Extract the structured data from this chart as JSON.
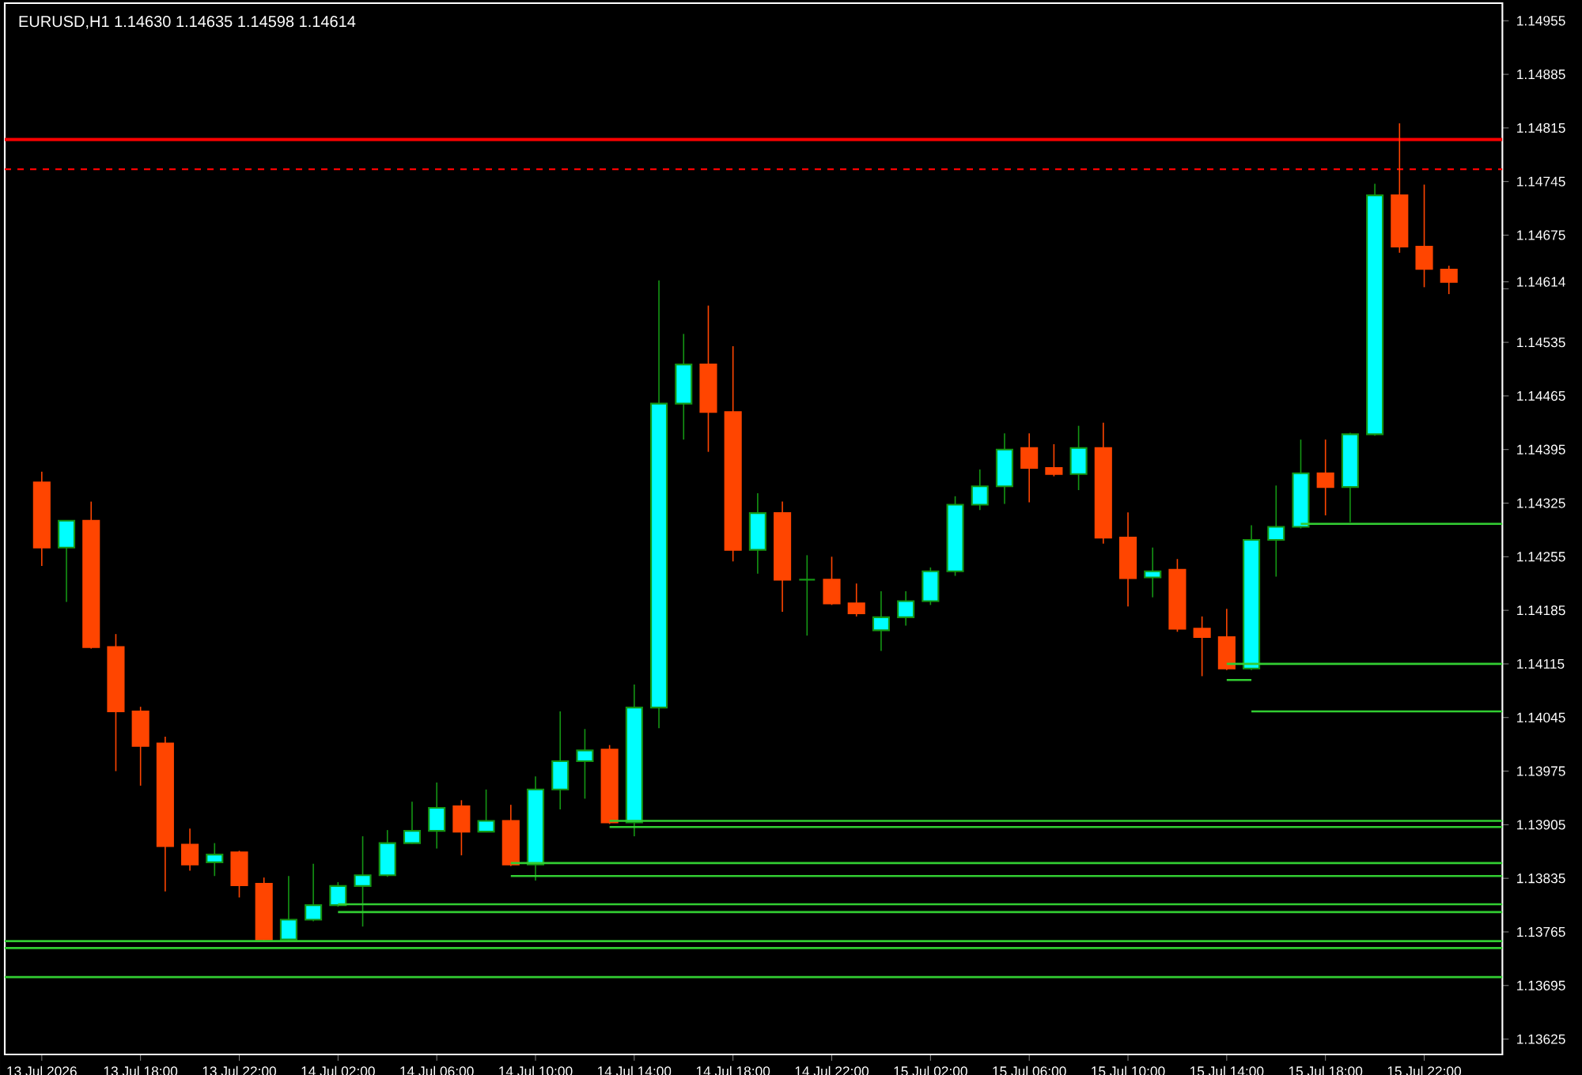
{
  "chart_data": {
    "type": "candlestick",
    "title": "EURUSD,H1  1.14630 1.14635 1.14598 1.14614",
    "x": [
      "2026-07-13T14:00",
      "2026-07-13T15:00",
      "2026-07-13T16:00",
      "2026-07-13T17:00",
      "2026-07-13T18:00",
      "2026-07-13T19:00",
      "2026-07-13T20:00",
      "2026-07-13T21:00",
      "2026-07-13T22:00",
      "2026-07-13T23:00",
      "2026-07-14T00:00",
      "2026-07-14T01:00",
      "2026-07-14T02:00",
      "2026-07-14T03:00",
      "2026-07-14T04:00",
      "2026-07-14T05:00",
      "2026-07-14T06:00",
      "2026-07-14T07:00",
      "2026-07-14T08:00",
      "2026-07-14T09:00",
      "2026-07-14T10:00",
      "2026-07-14T11:00",
      "2026-07-14T12:00",
      "2026-07-14T13:00",
      "2026-07-14T14:00",
      "2026-07-14T15:00",
      "2026-07-14T16:00",
      "2026-07-14T17:00",
      "2026-07-14T18:00",
      "2026-07-14T19:00",
      "2026-07-14T20:00",
      "2026-07-14T21:00",
      "2026-07-14T22:00",
      "2026-07-14T23:00",
      "2026-07-15T00:00",
      "2026-07-15T01:00",
      "2026-07-15T02:00",
      "2026-07-15T03:00",
      "2026-07-15T04:00",
      "2026-07-15T05:00",
      "2026-07-15T06:00",
      "2026-07-15T07:00",
      "2026-07-15T08:00",
      "2026-07-15T09:00",
      "2026-07-15T10:00",
      "2026-07-15T11:00",
      "2026-07-15T12:00",
      "2026-07-15T13:00",
      "2026-07-15T14:00",
      "2026-07-15T15:00",
      "2026-07-15T16:00",
      "2026-07-15T17:00",
      "2026-07-15T18:00",
      "2026-07-15T19:00",
      "2026-07-15T20:00",
      "2026-07-15T21:00",
      "2026-07-15T22:00",
      "2026-07-15T23:00"
    ],
    "ohlc": [
      [
        1.14352,
        1.14366,
        1.14243,
        1.14267
      ],
      [
        1.14267,
        1.14302,
        1.14196,
        1.14302
      ],
      [
        1.14302,
        1.14327,
        1.14135,
        1.14137
      ],
      [
        1.14137,
        1.14154,
        1.13975,
        1.14053
      ],
      [
        1.14053,
        1.14059,
        1.13956,
        1.14008
      ],
      [
        1.14011,
        1.1402,
        1.13818,
        1.13877
      ],
      [
        1.13879,
        1.139,
        1.13845,
        1.13853
      ],
      [
        1.13856,
        1.13881,
        1.13838,
        1.13866
      ],
      [
        1.13869,
        1.13871,
        1.1381,
        1.13826
      ],
      [
        1.13828,
        1.13836,
        1.13753,
        1.13755
      ],
      [
        1.13755,
        1.13838,
        1.13753,
        1.13781
      ],
      [
        1.13781,
        1.13854,
        1.13779,
        1.138
      ],
      [
        1.138,
        1.1383,
        1.13798,
        1.13825
      ],
      [
        1.13825,
        1.1389,
        1.13772,
        1.13839
      ],
      [
        1.13839,
        1.13898,
        1.13837,
        1.13881
      ],
      [
        1.13881,
        1.13935,
        1.1388,
        1.13897
      ],
      [
        1.13897,
        1.1396,
        1.13874,
        1.13927
      ],
      [
        1.13929,
        1.13937,
        1.13865,
        1.13896
      ],
      [
        1.13896,
        1.13951,
        1.13895,
        1.1391
      ],
      [
        1.1391,
        1.13931,
        1.13851,
        1.13853
      ],
      [
        1.13853,
        1.13968,
        1.13832,
        1.13951
      ],
      [
        1.13951,
        1.14053,
        1.13925,
        1.13988
      ],
      [
        1.13988,
        1.1403,
        1.13939,
        1.14002
      ],
      [
        1.14003,
        1.14009,
        1.13906,
        1.13908
      ],
      [
        1.13908,
        1.14088,
        1.1389,
        1.14058
      ],
      [
        1.14058,
        1.14616,
        1.14031,
        1.14455
      ],
      [
        1.14455,
        1.14546,
        1.14408,
        1.14506
      ],
      [
        1.14506,
        1.14583,
        1.14392,
        1.14444
      ],
      [
        1.14444,
        1.1453,
        1.14249,
        1.14264
      ],
      [
        1.14264,
        1.14338,
        1.14233,
        1.14312
      ],
      [
        1.14312,
        1.14327,
        1.14183,
        1.14225
      ],
      [
        1.14225,
        1.14257,
        1.14152,
        1.14225
      ],
      [
        1.14225,
        1.14255,
        1.14192,
        1.14194
      ],
      [
        1.14194,
        1.1422,
        1.14177,
        1.14181
      ],
      [
        1.14159,
        1.1421,
        1.14132,
        1.14176
      ],
      [
        1.14176,
        1.1421,
        1.14165,
        1.14197
      ],
      [
        1.14197,
        1.14241,
        1.14192,
        1.14236
      ],
      [
        1.14236,
        1.14334,
        1.1423,
        1.14323
      ],
      [
        1.14323,
        1.14369,
        1.14316,
        1.14347
      ],
      [
        1.14347,
        1.14416,
        1.14324,
        1.14395
      ],
      [
        1.14397,
        1.14416,
        1.14326,
        1.14371
      ],
      [
        1.14371,
        1.14402,
        1.1436,
        1.14363
      ],
      [
        1.14363,
        1.14426,
        1.14342,
        1.14397
      ],
      [
        1.14397,
        1.1443,
        1.14272,
        1.1428
      ],
      [
        1.1428,
        1.14313,
        1.1419,
        1.14227
      ],
      [
        1.14228,
        1.14267,
        1.14202,
        1.14236
      ],
      [
        1.14238,
        1.14252,
        1.14157,
        1.14161
      ],
      [
        1.14161,
        1.14177,
        1.14099,
        1.1415
      ],
      [
        1.1415,
        1.14187,
        1.14107,
        1.14109
      ],
      [
        1.14109,
        1.14296,
        1.14107,
        1.14277
      ],
      [
        1.14277,
        1.14348,
        1.14229,
        1.14294
      ],
      [
        1.14294,
        1.14408,
        1.14292,
        1.14364
      ],
      [
        1.14364,
        1.14408,
        1.14309,
        1.14346
      ],
      [
        1.14346,
        1.14417,
        1.143,
        1.14415
      ],
      [
        1.14415,
        1.14742,
        1.14413,
        1.14727
      ],
      [
        1.14727,
        1.14821,
        1.14652,
        1.1466
      ],
      [
        1.1466,
        1.14741,
        1.14607,
        1.14631
      ],
      [
        1.1463,
        1.14635,
        1.14598,
        1.14614
      ]
    ],
    "colors": [
      "#ff4500",
      "#00ffff",
      "#ff4500",
      "#ff4500",
      "#ff4500",
      "#ff4500",
      "#ff4500",
      "#00ffff",
      "#ff4500",
      "#ff4500",
      "#00ffff",
      "#00ffff",
      "#00ffff",
      "#00ffff",
      "#00ffff",
      "#00ffff",
      "#00ffff",
      "#ff4500",
      "#00ffff",
      "#ff4500",
      "#00ffff",
      "#00ffff",
      "#00ffff",
      "#ff4500",
      "#00ffff",
      "#00ffff",
      "#00ffff",
      "#ff4500",
      "#ff4500",
      "#00ffff",
      "#ff4500",
      "#149614",
      "#ff4500",
      "#ff4500",
      "#00ffff",
      "#00ffff",
      "#00ffff",
      "#00ffff",
      "#00ffff",
      "#00ffff",
      "#ff4500",
      "#ff4500",
      "#00ffff",
      "#ff4500",
      "#ff4500",
      "#00ffff",
      "#ff4500",
      "#ff4500",
      "#ff4500",
      "#00ffff",
      "#00ffff",
      "#00ffff",
      "#ff4500",
      "#00ffff",
      "#00ffff",
      "#ff4500",
      "#ff4500",
      "#ff4500"
    ],
    "series": [
      {
        "type": "line",
        "color": "#32cd32",
        "x": [
          "2026-07-13T12:30",
          "2026-07-16T01:10"
        ],
        "values": [
          1.13753,
          1.13753
        ]
      },
      {
        "type": "line",
        "color": "#32cd32",
        "x": [
          "2026-07-13T12:30",
          "2026-07-16T01:10"
        ],
        "values": [
          1.13744,
          1.13744
        ]
      },
      {
        "type": "line",
        "color": "#32cd32",
        "x": [
          "2026-07-13T12:30",
          "2026-07-16T01:10"
        ],
        "values": [
          1.13706,
          1.13706
        ]
      },
      {
        "type": "line",
        "color": "#32cd32",
        "x": [
          "2026-07-14T02:00",
          "2026-07-16T01:10"
        ],
        "values": [
          1.13801,
          1.13801
        ]
      },
      {
        "type": "line",
        "color": "#32cd32",
        "x": [
          "2026-07-14T02:00",
          "2026-07-16T01:10"
        ],
        "values": [
          1.13791,
          1.13791
        ]
      },
      {
        "type": "line",
        "color": "#32cd32",
        "x": [
          "2026-07-14T09:00",
          "2026-07-16T01:10"
        ],
        "values": [
          1.13855,
          1.13855
        ]
      },
      {
        "type": "line",
        "color": "#32cd32",
        "x": [
          "2026-07-14T09:00",
          "2026-07-16T01:10"
        ],
        "values": [
          1.13838,
          1.13838
        ]
      },
      {
        "type": "line",
        "color": "#32cd32",
        "x": [
          "2026-07-14T13:00",
          "2026-07-16T01:10"
        ],
        "values": [
          1.1391,
          1.1391
        ]
      },
      {
        "type": "line",
        "color": "#32cd32",
        "x": [
          "2026-07-14T13:00",
          "2026-07-16T01:10"
        ],
        "values": [
          1.13902,
          1.13902
        ]
      },
      {
        "type": "line",
        "color": "#32cd32",
        "x": [
          "2026-07-15T14:00",
          "2026-07-16T01:10"
        ],
        "values": [
          1.14115,
          1.14115
        ]
      },
      {
        "type": "line",
        "color": "#32cd32",
        "x": [
          "2026-07-15T15:00",
          "2026-07-16T01:10"
        ],
        "values": [
          1.14053,
          1.14053
        ]
      },
      {
        "type": "line",
        "color": "#32cd32",
        "x": [
          "2026-07-15T14:00",
          "2026-07-15T15:00"
        ],
        "values": [
          1.14094,
          1.14094
        ]
      },
      {
        "type": "line",
        "color": "#32cd32",
        "x": [
          "2026-07-15T17:00",
          "2026-07-16T01:10"
        ],
        "values": [
          1.14298,
          1.14298
        ]
      }
    ],
    "ref_lines": [
      {
        "axis": "y",
        "value": 1.148,
        "color": "#ff0000",
        "line_style": "solid"
      },
      {
        "axis": "y",
        "value": 1.14761,
        "color": "#ff0000",
        "line_style": "dashed"
      }
    ],
    "xlim": [
      "2026-07-13T12:30",
      "2026-07-16T01:10"
    ],
    "xticks": [
      {
        "value": "2026-07-13T14:00",
        "label": "13 Jul 2026"
      },
      {
        "value": "2026-07-13T18:00",
        "label": "13 Jul 18:00"
      },
      {
        "value": "2026-07-13T22:00",
        "label": "13 Jul 22:00"
      },
      {
        "value": "2026-07-14T02:00",
        "label": "14 Jul 02:00"
      },
      {
        "value": "2026-07-14T06:00",
        "label": "14 Jul 06:00"
      },
      {
        "value": "2026-07-14T10:00",
        "label": "14 Jul 10:00"
      },
      {
        "value": "2026-07-14T14:00",
        "label": "14 Jul 14:00"
      },
      {
        "value": "2026-07-14T18:00",
        "label": "14 Jul 18:00"
      },
      {
        "value": "2026-07-14T22:00",
        "label": "14 Jul 22:00"
      },
      {
        "value": "2026-07-15T02:00",
        "label": "15 Jul 02:00"
      },
      {
        "value": "2026-07-15T06:00",
        "label": "15 Jul 06:00"
      },
      {
        "value": "2026-07-15T10:00",
        "label": "15 Jul 10:00"
      },
      {
        "value": "2026-07-15T14:00",
        "label": "15 Jul 14:00"
      },
      {
        "value": "2026-07-15T18:00",
        "label": "15 Jul 18:00"
      },
      {
        "value": "2026-07-15T22:00",
        "label": "15 Jul 22:00"
      }
    ],
    "ylim": [
      1.13605,
      1.14978
    ],
    "yticks": [
      1.13625,
      1.13695,
      1.13765,
      1.13835,
      1.13905,
      1.13975,
      1.14045,
      1.14115,
      1.14185,
      1.14255,
      1.14325,
      1.14395,
      1.14465,
      1.14535,
      {
        "value": 1.14605,
        "label": null
      },
      {
        "value": 1.14614,
        "label": "1.14614"
      },
      1.14675,
      1.14745,
      1.14815,
      1.14885,
      1.14955
    ]
  }
}
